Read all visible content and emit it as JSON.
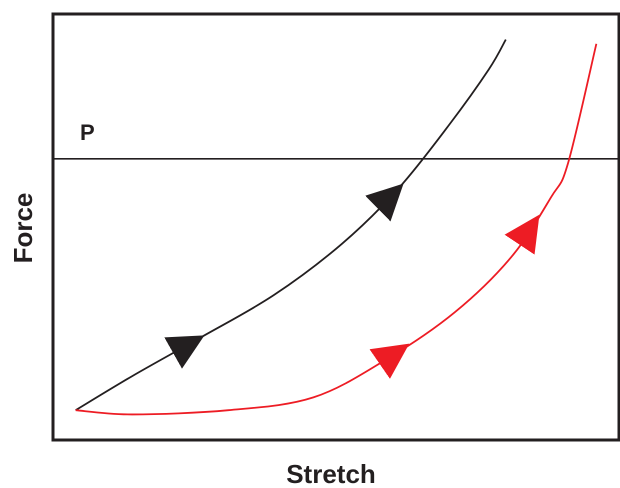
{
  "chart_data": {
    "type": "line",
    "xlabel": "Stretch",
    "ylabel": "Force",
    "xlim": [
      0,
      1
    ],
    "ylim": [
      0,
      1
    ],
    "grid": false,
    "reference_line": {
      "label": "P",
      "y": 0.66
    },
    "series": [
      {
        "color": "#231f20",
        "arrow_at": [
          0.26,
          0.73
        ],
        "x": [
          0.04,
          0.14,
          0.26,
          0.39,
          0.51,
          0.61,
          0.7,
          0.77,
          0.8
        ],
        "y": [
          0.07,
          0.15,
          0.24,
          0.34,
          0.46,
          0.59,
          0.74,
          0.87,
          0.94
        ]
      },
      {
        "color": "#ed1c24",
        "arrow_at": [
          0.61,
          0.87
        ],
        "x": [
          0.04,
          0.14,
          0.31,
          0.46,
          0.59,
          0.71,
          0.81,
          0.88,
          0.91,
          0.96
        ],
        "y": [
          0.07,
          0.06,
          0.07,
          0.1,
          0.19,
          0.3,
          0.43,
          0.57,
          0.65,
          0.93
        ]
      }
    ]
  }
}
